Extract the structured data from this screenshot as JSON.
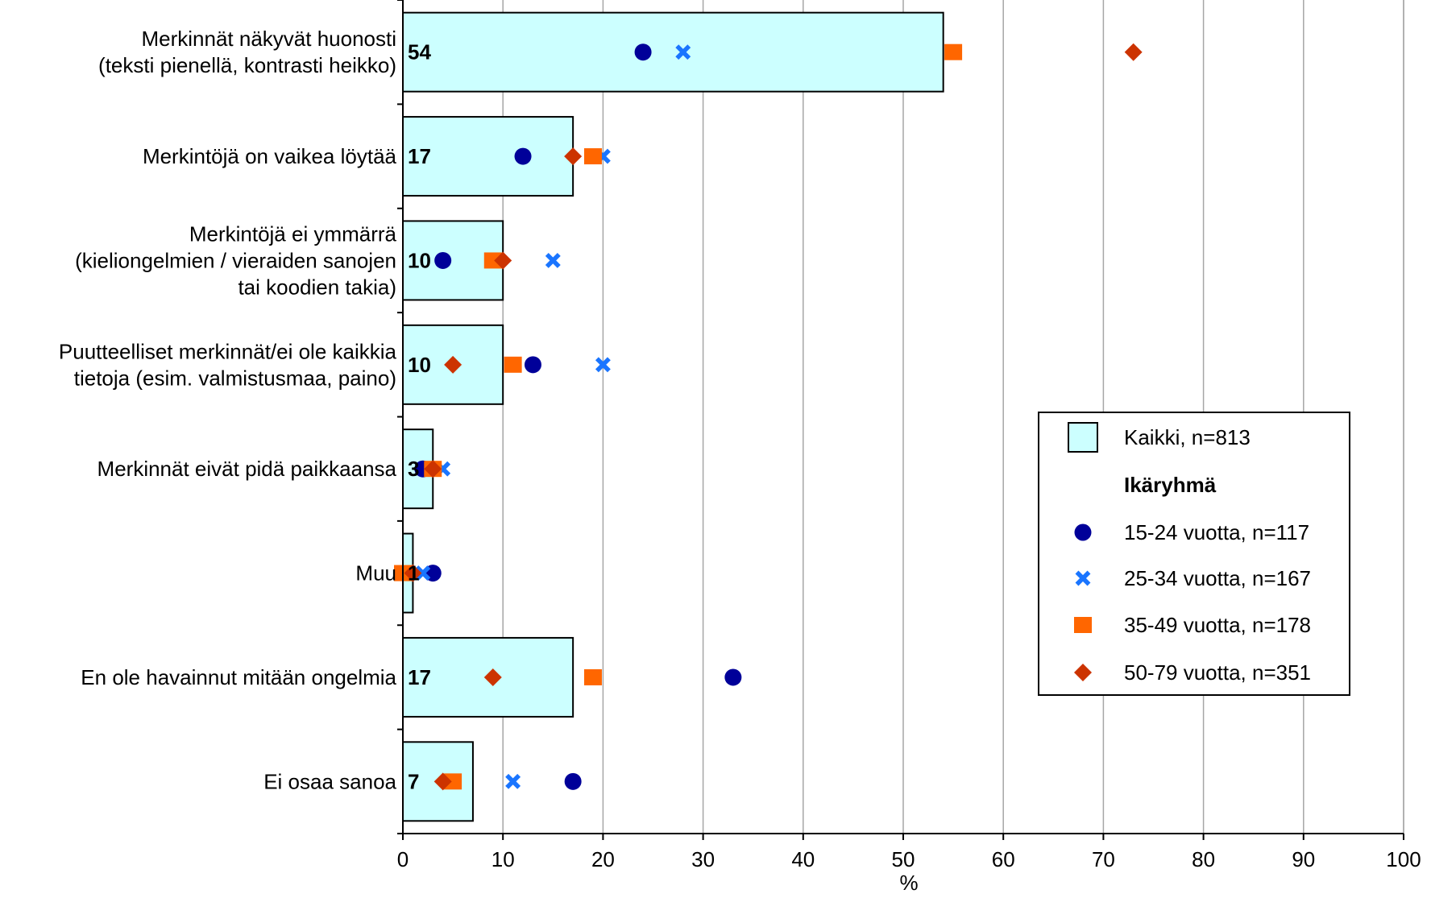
{
  "chart_data": {
    "type": "bar",
    "orientation": "horizontal",
    "categories": [
      [
        "Merkinnät näkyvät huonosti",
        "(teksti pienellä, kontrasti heikko)"
      ],
      [
        "Merkintöjä on vaikea löytää"
      ],
      [
        "Merkintöjä ei ymmärrä",
        "(kieliongelmien / vieraiden sanojen",
        "tai koodien takia)"
      ],
      [
        "Puutteelliset merkinnät/ei ole kaikkia",
        "tietoja (esim. valmistusmaa, paino)"
      ],
      [
        "Merkinnät eivät pidä paikkaansa"
      ],
      [
        "Muu"
      ],
      [
        "En ole havainnut mitään ongelmia"
      ],
      [
        "Ei osaa sanoa"
      ]
    ],
    "bar_series": {
      "name": "Kaikki, n=813",
      "values": [
        54,
        17,
        10,
        10,
        3,
        1,
        17,
        7
      ],
      "color": "#ccffff"
    },
    "legend_heading": "Ikäryhmä",
    "marker_series": [
      {
        "name": "15-24 vuotta, n=117",
        "marker": "circle",
        "color": "#000099",
        "values": [
          24,
          12,
          4,
          13,
          2,
          3,
          33,
          17
        ]
      },
      {
        "name": "25-34 vuotta, n=167",
        "marker": "cross",
        "color": "#1a75ff",
        "values": [
          28,
          20,
          15,
          20,
          4,
          2,
          null,
          11
        ]
      },
      {
        "name": "35-49 vuotta, n=178",
        "marker": "square",
        "color": "#ff6600",
        "values": [
          55,
          19,
          9,
          11,
          3,
          0,
          19,
          5
        ]
      },
      {
        "name": "50-79 vuotta, n=351",
        "marker": "diamond",
        "color": "#cc3300",
        "values": [
          73,
          17,
          10,
          5,
          3,
          1,
          9,
          4
        ]
      }
    ],
    "xlabel": "%",
    "ylabel": "",
    "xlim": [
      0,
      100
    ],
    "xticks": [
      0,
      10,
      20,
      30,
      40,
      50,
      60,
      70,
      80,
      90,
      100
    ],
    "grid": "vertical",
    "legend_position": "right"
  }
}
